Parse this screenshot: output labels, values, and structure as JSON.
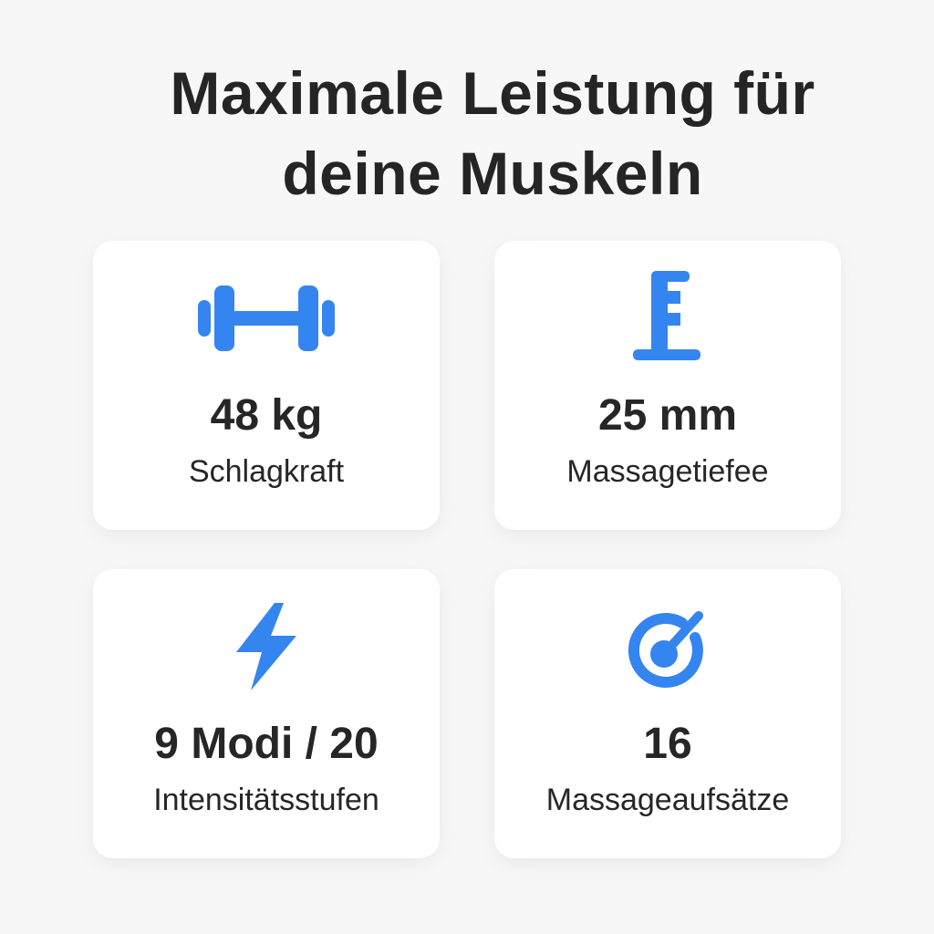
{
  "title": {
    "line1": "Maximale Leistung für",
    "line2": "deine Muskeln"
  },
  "accent_color": "#3585f0",
  "features": [
    {
      "icon": "dumbbell-icon",
      "value": "48 kg",
      "label": "Schlagkraft"
    },
    {
      "icon": "depth-gauge-icon",
      "value": "25 mm",
      "label": "Massagetiefee"
    },
    {
      "icon": "lightning-bolt-icon",
      "value": "9 Modi / 20",
      "label": "Intensitätsstufen"
    },
    {
      "icon": "target-icon",
      "value": "16",
      "label": "Massageaufsätze"
    }
  ]
}
